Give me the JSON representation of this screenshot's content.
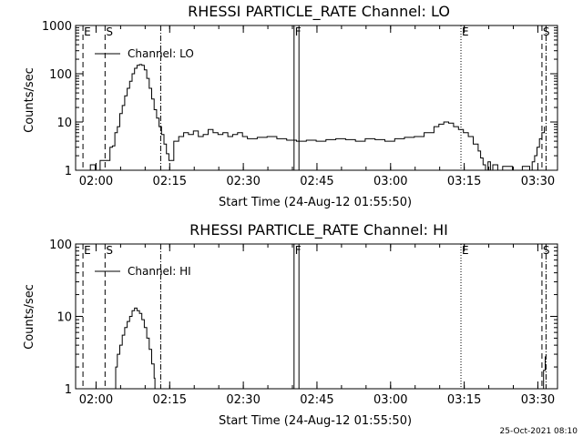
{
  "footer": "25-Oct-2021 08:10",
  "chart_data": [
    {
      "type": "line",
      "title": "RHESSI PARTICLE_RATE Channel: LO",
      "xlabel": "Start Time (24-Aug-12 01:55:50)",
      "ylabel": "Counts/sec",
      "yscale": "log",
      "ylim": [
        1,
        1000
      ],
      "xlim": [
        "01:55:50",
        "03:34:00"
      ],
      "xticks": [
        "02:00",
        "02:15",
        "02:30",
        "02:45",
        "03:00",
        "03:15",
        "03:30"
      ],
      "yticks": [
        "1",
        "10",
        "100",
        "1000"
      ],
      "legend": {
        "label": "Channel: LO",
        "placement": "top-left"
      },
      "markers": [
        {
          "label": "E",
          "time": "01:57:20",
          "style": "dashed"
        },
        {
          "label": "S",
          "time": "02:01:50",
          "style": "dashed"
        },
        {
          "label": "",
          "time": "02:13:10",
          "style": "dashdot"
        },
        {
          "label": "F",
          "time": "02:40:20",
          "style": "solid"
        },
        {
          "label": "",
          "time": "02:41:20",
          "style": "solid"
        },
        {
          "label": "E",
          "time": "03:14:20",
          "style": "dotted"
        },
        {
          "label": "S",
          "time": "03:30:50",
          "style": "dashed"
        },
        {
          "label": "",
          "time": "03:31:40",
          "style": "dashdot"
        }
      ],
      "series": [
        {
          "name": "Channel: LO",
          "x": [
            "01:57:50",
            "01:58:50",
            "01:59:50",
            "02:00:50",
            "02:01:50",
            "02:02:50",
            "02:03:20",
            "02:03:50",
            "02:04:20",
            "02:04:50",
            "02:05:20",
            "02:05:50",
            "02:06:20",
            "02:06:50",
            "02:07:20",
            "02:07:50",
            "02:08:20",
            "02:08:50",
            "02:09:20",
            "02:09:50",
            "02:10:20",
            "02:10:50",
            "02:11:20",
            "02:11:50",
            "02:12:20",
            "02:12:50",
            "02:13:20",
            "02:13:50",
            "02:14:20",
            "02:14:50",
            "02:15:50",
            "02:16:50",
            "02:17:50",
            "02:18:50",
            "02:19:50",
            "02:20:50",
            "02:21:50",
            "02:22:50",
            "02:23:50",
            "02:24:50",
            "02:25:50",
            "02:26:50",
            "02:27:50",
            "02:28:50",
            "02:29:50",
            "02:30:50",
            "02:32:50",
            "02:34:50",
            "02:36:50",
            "02:38:50",
            "02:40:50",
            "02:42:50",
            "02:44:50",
            "02:46:50",
            "02:48:50",
            "02:50:50",
            "02:52:50",
            "02:54:50",
            "02:56:50",
            "02:58:50",
            "03:00:50",
            "03:02:50",
            "03:04:50",
            "03:06:50",
            "03:08:50",
            "03:09:50",
            "03:10:50",
            "03:11:50",
            "03:12:50",
            "03:13:50",
            "03:14:50",
            "03:15:50",
            "03:16:50",
            "03:17:50",
            "03:18:20",
            "03:18:50",
            "03:19:20",
            "03:19:50",
            "03:20:20",
            "03:20:50",
            "03:21:50",
            "03:22:50",
            "03:24:50",
            "03:26:50",
            "03:28:20",
            "03:28:50",
            "03:29:20",
            "03:29:50",
            "03:30:20",
            "03:30:50",
            "03:31:20"
          ],
          "y": [
            1.0,
            1.3,
            1.0,
            1.6,
            1.6,
            3.0,
            3.2,
            6.0,
            8.0,
            15.0,
            22.0,
            35.0,
            50.0,
            70.0,
            100.0,
            130.0,
            150.0,
            155.0,
            150.0,
            120.0,
            80.0,
            50.0,
            30.0,
            18.0,
            12.0,
            8.0,
            5.5,
            3.5,
            2.2,
            1.6,
            4.0,
            5.0,
            6.0,
            5.5,
            6.5,
            5.0,
            5.5,
            7.0,
            6.0,
            5.5,
            6.0,
            5.0,
            5.5,
            6.0,
            5.0,
            4.5,
            4.8,
            5.0,
            4.5,
            4.2,
            4.0,
            4.2,
            4.0,
            4.3,
            4.5,
            4.3,
            4.0,
            4.5,
            4.3,
            4.0,
            4.5,
            4.8,
            5.0,
            6.0,
            8.0,
            9.0,
            10.0,
            9.5,
            8.0,
            7.0,
            6.0,
            5.0,
            3.5,
            2.5,
            1.8,
            1.3,
            1.0,
            1.5,
            1.0,
            1.3,
            1.0,
            1.2,
            1.0,
            1.2,
            1.0,
            1.5,
            2.0,
            3.0,
            4.5,
            6.0,
            8.0
          ]
        }
      ]
    },
    {
      "type": "line",
      "title": "RHESSI PARTICLE_RATE Channel: HI",
      "xlabel": "Start Time (24-Aug-12 01:55:50)",
      "ylabel": "Counts/sec",
      "yscale": "log",
      "ylim": [
        1,
        100
      ],
      "xlim": [
        "01:55:50",
        "03:34:00"
      ],
      "xticks": [
        "02:00",
        "02:15",
        "02:30",
        "02:45",
        "03:00",
        "03:15",
        "03:30"
      ],
      "yticks": [
        "1",
        "10",
        "100"
      ],
      "legend": {
        "label": "Channel: HI",
        "placement": "top-left"
      },
      "markers": [
        {
          "label": "E",
          "time": "01:57:20",
          "style": "dashed"
        },
        {
          "label": "S",
          "time": "02:01:50",
          "style": "dashed"
        },
        {
          "label": "",
          "time": "02:13:10",
          "style": "dashdot"
        },
        {
          "label": "F",
          "time": "02:40:20",
          "style": "solid"
        },
        {
          "label": "",
          "time": "02:41:20",
          "style": "solid"
        },
        {
          "label": "E",
          "time": "03:14:20",
          "style": "dotted"
        },
        {
          "label": "S",
          "time": "03:30:50",
          "style": "dashed"
        },
        {
          "label": "",
          "time": "03:31:40",
          "style": "dashdot"
        }
      ],
      "series": [
        {
          "name": "Channel: HI",
          "x": [
            "02:03:50",
            "02:04:00",
            "02:04:20",
            "02:04:50",
            "02:05:20",
            "02:05:50",
            "02:06:20",
            "02:06:50",
            "02:07:20",
            "02:07:50",
            "02:08:20",
            "02:08:50",
            "02:09:20",
            "02:09:50",
            "02:10:20",
            "02:10:50",
            "02:11:20",
            "02:11:50",
            "02:12:00"
          ],
          "y": [
            1.0,
            2.0,
            3.0,
            4.0,
            5.5,
            7.0,
            8.5,
            10.0,
            12.0,
            13.0,
            12.0,
            11.0,
            9.0,
            7.0,
            5.0,
            3.5,
            2.2,
            1.4,
            1.0
          ]
        },
        {
          "name": "",
          "x": [
            "03:30:50",
            "03:31:10",
            "03:31:30"
          ],
          "y": [
            1.0,
            1.8,
            2.8
          ]
        }
      ]
    }
  ]
}
